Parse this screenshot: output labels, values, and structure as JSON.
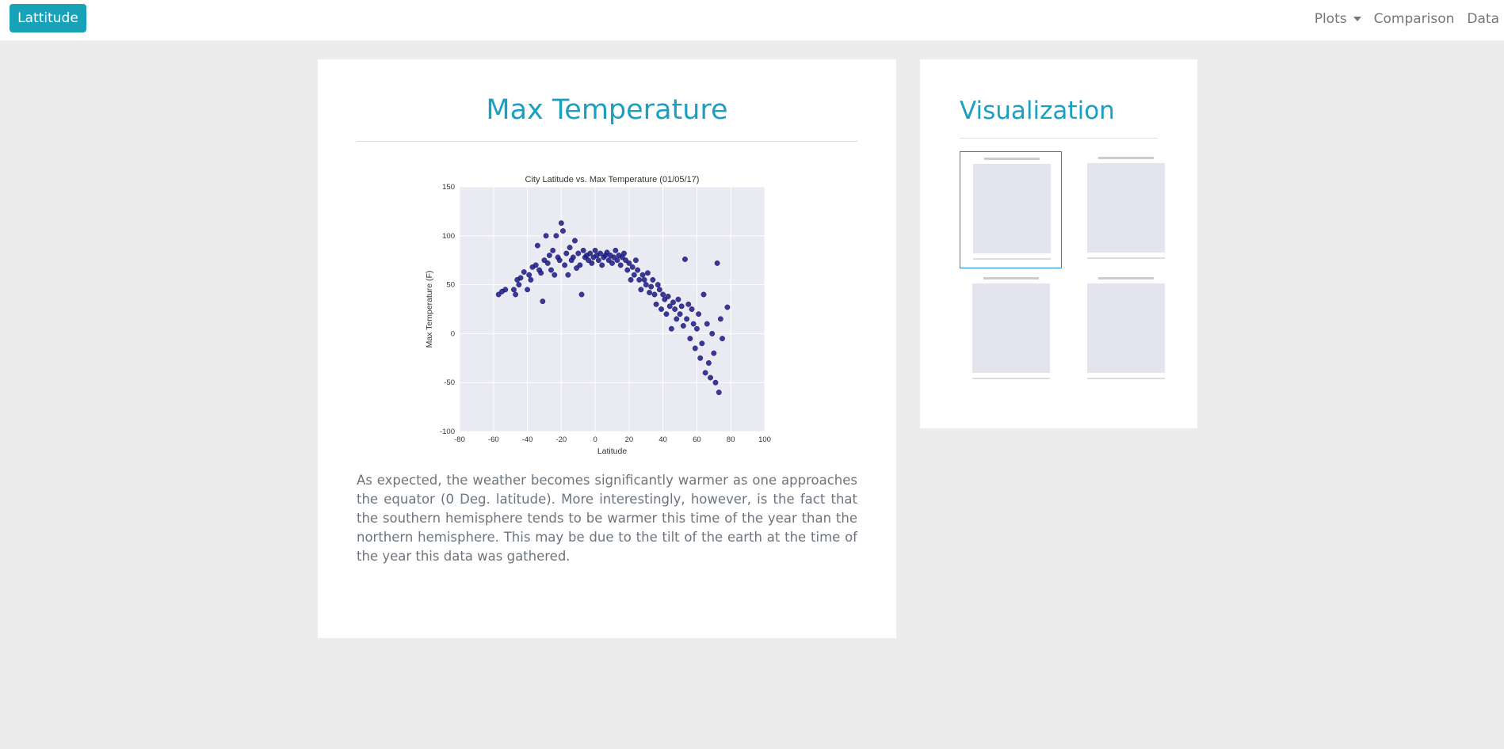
{
  "navbar": {
    "brand": "Lattitude",
    "links": [
      "Plots",
      "Comparison",
      "Data"
    ]
  },
  "main": {
    "title": "Max Temperature",
    "description": "As expected, the weather becomes significantly warmer as one approaches the equator (0 Deg. latitude). More interestingly, however, is the fact that the southern hemisphere tends to be warmer this time of the year than the northern hemisphere. This may be due to the tilt of the earth at the time of the year this data was gathered."
  },
  "sidebar": {
    "title": "Visualization"
  },
  "chart_data": {
    "type": "scatter",
    "title": "City Latitude vs. Max Temperature (01/05/17)",
    "x_label": "Latitude",
    "y_label": "Max Temperature (F)",
    "color": "#1a1a80",
    "background": "#eaeaf2",
    "grid": true,
    "xlim": [
      -80,
      100
    ],
    "ylim": [
      -100,
      150
    ],
    "xticks": [
      -80,
      -60,
      -40,
      -20,
      0,
      20,
      40,
      60,
      80,
      100
    ],
    "yticks": [
      -100,
      -50,
      0,
      50,
      100,
      150
    ],
    "x": [
      -57,
      -55,
      -53,
      -48,
      -47,
      -46,
      -45,
      -44,
      -42,
      -40,
      -39,
      -38,
      -37,
      -35,
      -34,
      -33,
      -32,
      -31,
      -30,
      -29,
      -28,
      -27,
      -26,
      -25,
      -24,
      -23,
      -22,
      -21,
      -20,
      -19,
      -18,
      -17,
      -16,
      -15,
      -14,
      -13,
      -12,
      -11,
      -10,
      -9,
      -8,
      -7,
      -6,
      -5,
      -4,
      -3,
      -2,
      -1,
      0,
      1,
      2,
      3,
      4,
      5,
      6,
      7,
      8,
      9,
      10,
      11,
      12,
      13,
      14,
      15,
      16,
      17,
      18,
      19,
      20,
      21,
      22,
      23,
      24,
      25,
      26,
      27,
      28,
      29,
      30,
      31,
      32,
      33,
      34,
      35,
      36,
      37,
      38,
      39,
      40,
      41,
      42,
      43,
      44,
      45,
      46,
      47,
      48,
      49,
      50,
      51,
      52,
      53,
      54,
      55,
      56,
      57,
      58,
      59,
      60,
      61,
      62,
      63,
      64,
      65,
      66,
      67,
      68,
      69,
      70,
      71,
      72,
      73,
      74,
      75,
      78
    ],
    "values": [
      40,
      43,
      45,
      45,
      40,
      55,
      50,
      57,
      63,
      45,
      60,
      55,
      68,
      70,
      90,
      65,
      62,
      33,
      75,
      100,
      72,
      80,
      65,
      85,
      60,
      100,
      78,
      75,
      113,
      105,
      70,
      82,
      60,
      88,
      75,
      78,
      95,
      67,
      82,
      70,
      40,
      85,
      78,
      80,
      75,
      82,
      72,
      78,
      85,
      80,
      75,
      82,
      70,
      78,
      80,
      83,
      75,
      80,
      72,
      78,
      85,
      75,
      80,
      70,
      78,
      82,
      75,
      65,
      72,
      55,
      68,
      60,
      75,
      65,
      55,
      45,
      60,
      55,
      50,
      62,
      42,
      48,
      55,
      40,
      30,
      50,
      45,
      25,
      40,
      35,
      20,
      38,
      28,
      5,
      32,
      25,
      15,
      35,
      20,
      28,
      8,
      76,
      15,
      30,
      -5,
      25,
      10,
      -15,
      5,
      20,
      -25,
      -10,
      40,
      -40,
      10,
      -30,
      -45,
      0,
      -20,
      -50,
      72,
      -60,
      15,
      -5,
      27
    ]
  }
}
